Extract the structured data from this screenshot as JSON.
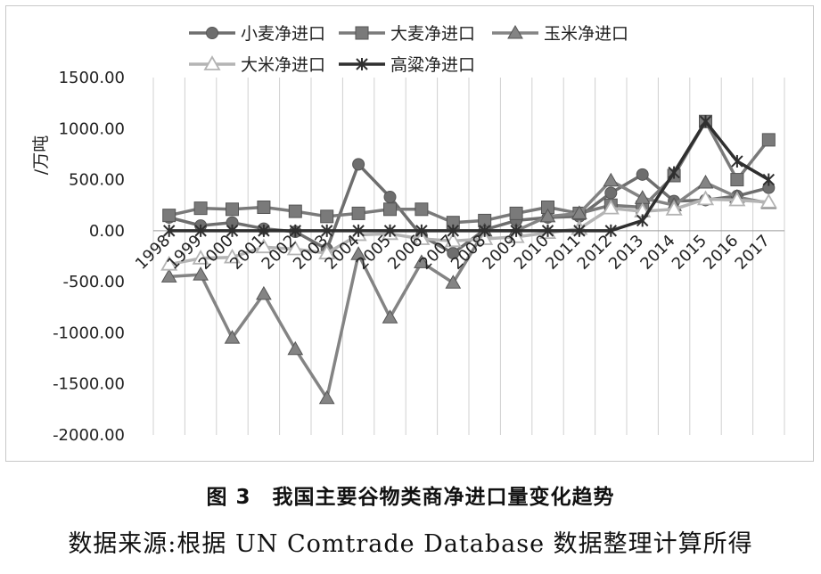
{
  "chart_data": {
    "type": "line",
    "title": "",
    "xlabel": "",
    "ylabel": "/万吨",
    "ylim": [
      -2000,
      1500
    ],
    "yticks": [
      1500,
      1000,
      500,
      0,
      -500,
      -1000,
      -1500,
      -2000
    ],
    "ytick_labels": [
      "1500.00",
      "1000.00",
      "500.00",
      "0.00",
      "-500.00",
      "-1000.00",
      "-1500.00",
      "-2000.00"
    ],
    "grid": "vertical",
    "legend_position": "top",
    "categories": [
      "1998",
      "1999",
      "2000",
      "2001",
      "2002",
      "2003",
      "2004",
      "2005",
      "2006",
      "2007",
      "2008",
      "2009",
      "2010",
      "2011",
      "2012",
      "2013",
      "2014",
      "2015",
      "2016",
      "2017"
    ],
    "series": [
      {
        "name": "小麦净进口",
        "marker": "circle",
        "color": "#6e6e6e",
        "values": [
          130,
          50,
          80,
          20,
          -10,
          -180,
          650,
          330,
          -50,
          -220,
          10,
          100,
          130,
          140,
          370,
          550,
          290,
          300,
          340,
          420
        ]
      },
      {
        "name": "大麦净进口",
        "marker": "square",
        "color": "#7a7a7a",
        "values": [
          150,
          220,
          210,
          230,
          190,
          140,
          170,
          210,
          210,
          80,
          100,
          170,
          230,
          170,
          250,
          230,
          540,
          1070,
          500,
          890
        ]
      },
      {
        "name": "玉米净进口",
        "marker": "triangle",
        "color": "#848484",
        "values": [
          -450,
          -430,
          -1050,
          -620,
          -1160,
          -1640,
          -230,
          -850,
          -310,
          -510,
          0,
          0,
          140,
          170,
          490,
          320,
          250,
          470,
          330,
          270
        ]
      },
      {
        "name": "大米净进口",
        "marker": "open-triangle",
        "color": "#b4b4b4",
        "values": [
          -330,
          -270,
          -260,
          -160,
          -180,
          -220,
          -40,
          -30,
          -80,
          -100,
          -80,
          -60,
          -20,
          20,
          220,
          190,
          210,
          310,
          300,
          280
        ]
      },
      {
        "name": "高粱净进口",
        "marker": "asterisk",
        "color": "#2f2f2f",
        "values": [
          0,
          0,
          0,
          0,
          0,
          0,
          0,
          0,
          0,
          0,
          0,
          0,
          0,
          0,
          0,
          100,
          570,
          1070,
          680,
          500
        ]
      }
    ]
  },
  "caption": "图 3　我国主要谷物类商净进口量变化趋势",
  "source": "数据来源:根据 UN Comtrade Database 数据整理计算所得"
}
